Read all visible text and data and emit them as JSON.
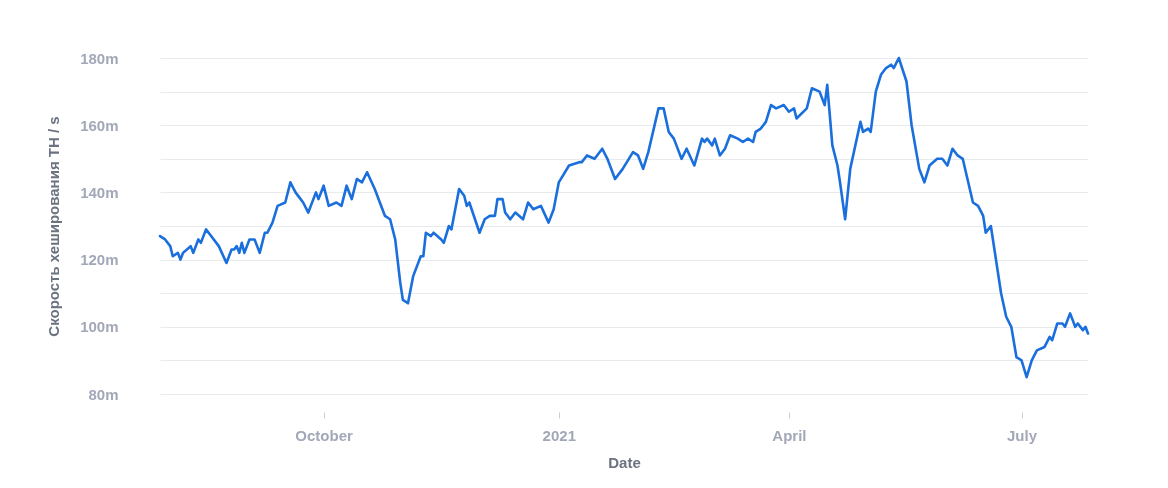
{
  "chart_data": {
    "type": "line",
    "xlabel": "Date",
    "ylabel": "Скорость хеширования TH / s",
    "xlim": [
      "2020-07-29",
      "2021-07-27"
    ],
    "ylim": [
      80,
      180
    ],
    "xticks": [
      {
        "value": "2020-10-01",
        "label": "October"
      },
      {
        "value": "2021-01-01",
        "label": "2021"
      },
      {
        "value": "2021-04-01",
        "label": "April"
      },
      {
        "value": "2021-07-01",
        "label": "July"
      }
    ],
    "yticks": [
      {
        "value": 80,
        "label": "80m"
      },
      {
        "value": 90,
        "label": null
      },
      {
        "value": 100,
        "label": "100m"
      },
      {
        "value": 110,
        "label": null
      },
      {
        "value": 120,
        "label": "120m"
      },
      {
        "value": 130,
        "label": null
      },
      {
        "value": 140,
        "label": "140m"
      },
      {
        "value": 150,
        "label": null
      },
      {
        "value": 160,
        "label": "160m"
      },
      {
        "value": 170,
        "label": null
      },
      {
        "value": 180,
        "label": "180m"
      }
    ],
    "grid": "y",
    "legend": false,
    "marker": "none",
    "line_style": "solid",
    "x": [
      "2020-07-29",
      "2020-07-31",
      "2020-08-02",
      "2020-08-03",
      "2020-08-05",
      "2020-08-06",
      "2020-08-07",
      "2020-08-10",
      "2020-08-11",
      "2020-08-13",
      "2020-08-14",
      "2020-08-16",
      "2020-08-18",
      "2020-08-21",
      "2020-08-24",
      "2020-08-26",
      "2020-08-27",
      "2020-08-28",
      "2020-08-29",
      "2020-08-30",
      "2020-08-31",
      "2020-09-02",
      "2020-09-04",
      "2020-09-06",
      "2020-09-08",
      "2020-09-09",
      "2020-09-11",
      "2020-09-13",
      "2020-09-16",
      "2020-09-18",
      "2020-09-20",
      "2020-09-22",
      "2020-09-23",
      "2020-09-25",
      "2020-09-28",
      "2020-09-29",
      "2020-10-01",
      "2020-10-03",
      "2020-10-06",
      "2020-10-08",
      "2020-10-10",
      "2020-10-12",
      "2020-10-14",
      "2020-10-16",
      "2020-10-18",
      "2020-10-21",
      "2020-10-23",
      "2020-10-25",
      "2020-10-27",
      "2020-10-29",
      "2020-10-31",
      "2020-11-01",
      "2020-11-03",
      "2020-11-05",
      "2020-11-08",
      "2020-11-09",
      "2020-11-10",
      "2020-11-12",
      "2020-11-13",
      "2020-11-16",
      "2020-11-17",
      "2020-11-19",
      "2020-11-20",
      "2020-11-23",
      "2020-11-25",
      "2020-11-26",
      "2020-11-27",
      "2020-12-01",
      "2020-12-03",
      "2020-12-05",
      "2020-12-07",
      "2020-12-08",
      "2020-12-10",
      "2020-12-11",
      "2020-12-13",
      "2020-12-15",
      "2020-12-18",
      "2020-12-20",
      "2020-12-22",
      "2020-12-25",
      "2020-12-28",
      "2020-12-30",
      "2021-01-01",
      "2021-01-05",
      "2021-01-09",
      "2021-01-10",
      "2021-01-12",
      "2021-01-15",
      "2021-01-18",
      "2021-01-20",
      "2021-01-23",
      "2021-01-26",
      "2021-01-30",
      "2021-02-01",
      "2021-02-03",
      "2021-02-05",
      "2021-02-09",
      "2021-02-11",
      "2021-02-13",
      "2021-02-15",
      "2021-02-18",
      "2021-02-20",
      "2021-02-23",
      "2021-02-26",
      "2021-02-27",
      "2021-02-28",
      "2021-03-02",
      "2021-03-03",
      "2021-03-05",
      "2021-03-07",
      "2021-03-09",
      "2021-03-12",
      "2021-03-14",
      "2021-03-16",
      "2021-03-18",
      "2021-03-19",
      "2021-03-21",
      "2021-03-23",
      "2021-03-25",
      "2021-03-27",
      "2021-03-30",
      "2021-04-01",
      "2021-04-03",
      "2021-04-04",
      "2021-04-08",
      "2021-04-10",
      "2021-04-13",
      "2021-04-15",
      "2021-04-16",
      "2021-04-18",
      "2021-04-20",
      "2021-04-21",
      "2021-04-23",
      "2021-04-25",
      "2021-04-29",
      "2021-04-30",
      "2021-05-02",
      "2021-05-03",
      "2021-05-05",
      "2021-05-07",
      "2021-05-09",
      "2021-05-11",
      "2021-05-12",
      "2021-05-14",
      "2021-05-17",
      "2021-05-19",
      "2021-05-22",
      "2021-05-24",
      "2021-05-26",
      "2021-05-29",
      "2021-05-31",
      "2021-06-02",
      "2021-06-04",
      "2021-06-06",
      "2021-06-08",
      "2021-06-12",
      "2021-06-14",
      "2021-06-16",
      "2021-06-17",
      "2021-06-19",
      "2021-06-23",
      "2021-06-25",
      "2021-06-27",
      "2021-06-29",
      "2021-07-01",
      "2021-07-03",
      "2021-07-05",
      "2021-07-07",
      "2021-07-10",
      "2021-07-12",
      "2021-07-13",
      "2021-07-15",
      "2021-07-17",
      "2021-07-18",
      "2021-07-20",
      "2021-07-22",
      "2021-07-23",
      "2021-07-25",
      "2021-07-26",
      "2021-07-27"
    ],
    "series": [
      {
        "color": "#1a6fdc",
        "values": [
          127,
          126,
          124,
          121,
          122,
          120,
          122,
          124,
          122,
          126,
          125,
          129,
          127,
          124,
          119,
          123,
          123,
          124,
          122,
          125,
          122,
          126,
          126,
          122,
          128,
          128,
          131,
          136,
          137,
          143,
          140,
          138,
          137,
          134,
          140,
          138,
          142,
          136,
          137,
          136,
          142,
          138,
          144,
          143,
          146,
          141,
          137,
          133,
          132,
          126,
          113,
          108,
          107,
          115,
          121,
          121,
          128,
          127,
          128,
          126,
          125,
          130,
          129,
          141,
          139,
          136,
          137,
          128,
          132,
          133,
          133,
          138,
          138,
          134,
          132,
          134,
          132,
          137,
          135,
          136,
          131,
          135,
          143,
          148,
          149,
          149,
          151,
          150,
          153,
          150,
          144,
          147,
          152,
          151,
          147,
          152,
          165,
          165,
          158,
          156,
          150,
          153,
          148,
          156,
          155,
          156,
          154,
          156,
          151,
          153,
          157,
          156,
          155,
          156,
          155,
          158,
          159,
          161,
          166,
          165,
          166,
          164,
          165,
          162,
          165,
          171,
          170,
          166,
          172,
          154,
          148,
          143,
          132,
          147,
          161,
          158,
          159,
          158,
          170,
          175,
          177,
          178,
          177,
          180,
          173,
          160,
          147,
          143,
          148,
          150,
          150,
          148,
          153,
          151,
          150,
          137,
          136,
          133,
          128,
          130,
          110,
          103,
          100,
          91,
          90,
          85,
          90,
          93,
          94,
          97,
          96,
          101,
          101,
          100,
          104,
          100,
          101,
          99,
          100,
          98
        ]
      }
    ]
  }
}
